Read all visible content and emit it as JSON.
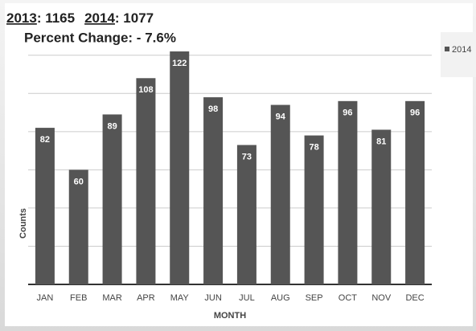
{
  "chart_data": {
    "type": "bar",
    "annotations": [
      {
        "year": "2013",
        "text": ": 1165"
      },
      {
        "year": "2014",
        "text": ": 1077"
      }
    ],
    "percent_change": "Percent Change: - 7.6%",
    "categories": [
      "JAN",
      "FEB",
      "MAR",
      "APR",
      "MAY",
      "JUN",
      "JUL",
      "AUG",
      "SEP",
      "OCT",
      "NOV",
      "DEC"
    ],
    "series": [
      {
        "name": "2014",
        "color": "#555555",
        "values": [
          82,
          60,
          89,
          108,
          122,
          98,
          73,
          94,
          78,
          96,
          81,
          96
        ]
      }
    ],
    "xlabel": "MONTH",
    "ylabel": "Counts",
    "ylim": [
      0,
      130
    ],
    "yticks": [
      0,
      20,
      40,
      60,
      80,
      100,
      120
    ],
    "grid": true,
    "legend": "right"
  }
}
